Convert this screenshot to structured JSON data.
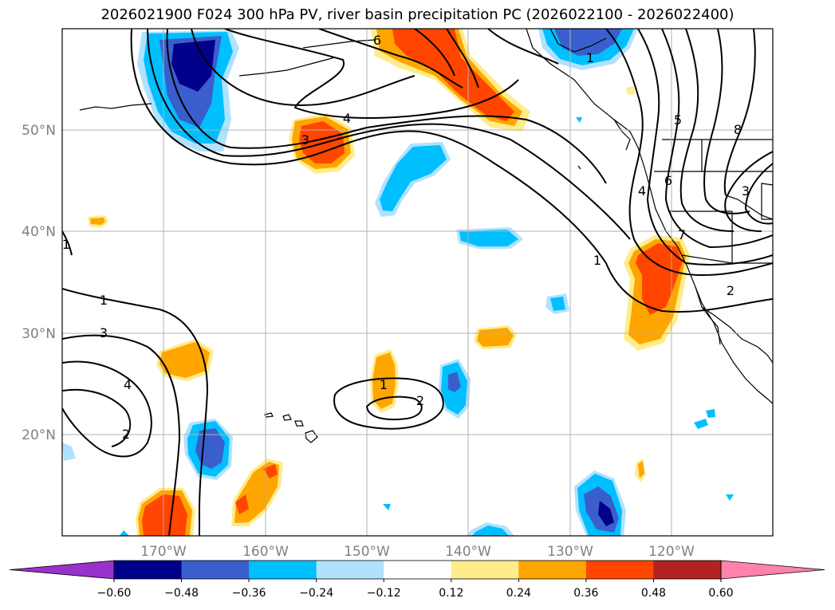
{
  "title": "2026021900 F024 300 hPa PV, river basin precipitation PC (2026022100 - 2026022400)",
  "lat_labels": [
    "50°N",
    "40°N",
    "30°N",
    "20°N"
  ],
  "lon_labels": [
    "170°W",
    "160°W",
    "150°W",
    "140°W",
    "130°W",
    "120°W"
  ],
  "contour_labels": [
    "6",
    "1",
    "4",
    "3",
    "5",
    "8",
    "6",
    "4",
    "7",
    "3",
    "2",
    "1",
    "1",
    "1",
    "3",
    "4",
    "2",
    "1",
    "2"
  ],
  "colorbar": {
    "colors": [
      "#9932cc",
      "#00008b",
      "#3a5fcd",
      "#00bfff",
      "#b0e2ff",
      "#ffffff",
      "#ffec8b",
      "#ffa500",
      "#ff4500",
      "#b22222",
      "#ff82ab"
    ],
    "ticks": [
      "−0.60",
      "−0.48",
      "−0.36",
      "−0.24",
      "−0.12",
      "0.12",
      "0.24",
      "0.36",
      "0.48",
      "0.60"
    ]
  },
  "palette": {
    "pos1": "#ffec8b",
    "pos2": "#ffa500",
    "pos3": "#ff4500",
    "neg1": "#b0e2ff",
    "neg2": "#00bfff",
    "neg3": "#3a5fcd",
    "neg4": "#00008b"
  }
}
